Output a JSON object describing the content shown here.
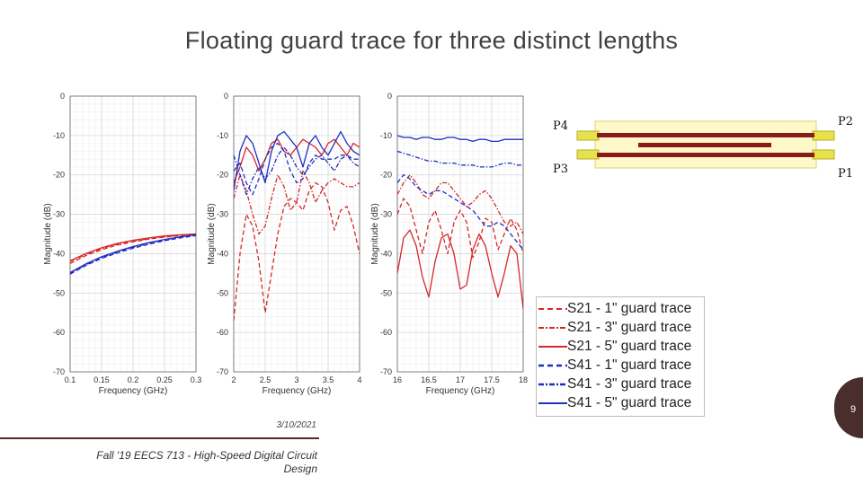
{
  "slide": {
    "title": "Floating guard trace for three distinct lengths",
    "date": "3/10/2021",
    "footer": "Fall '19 EECS 713 - High-Speed Digital Circuit Design",
    "page_number": "9"
  },
  "diagram": {
    "ports": {
      "top_left": "P4",
      "top_right": "P2",
      "bottom_left": "P3",
      "bottom_right": "P1"
    },
    "colors": {
      "trace": "#8b1a1a",
      "substrate": "#fff8c8",
      "connector": "#e8e24a"
    }
  },
  "legend": {
    "items": [
      {
        "label": "S21 - 1\" guard trace",
        "color": "#d62828",
        "style": "dashed"
      },
      {
        "label": "S21 - 3\" guard trace",
        "color": "#d62828",
        "style": "dashdot"
      },
      {
        "label": "S21 - 5\" guard trace",
        "color": "#d62828",
        "style": "solid"
      },
      {
        "label": "S41 - 1\" guard trace",
        "color": "#1f2fbf",
        "style": "dashed"
      },
      {
        "label": "S41 - 3\" guard trace",
        "color": "#1f2fbf",
        "style": "dashdot"
      },
      {
        "label": "S41 - 5\" guard trace",
        "color": "#1f2fbf",
        "style": "solid"
      }
    ]
  },
  "chart_data": [
    {
      "type": "line",
      "xlabel": "Frequency (GHz)",
      "ylabel": "Magnitude (dB)",
      "xlim": [
        0.1,
        0.3
      ],
      "ylim": [
        -70,
        0
      ],
      "xticks": [
        "0.1",
        "0.15",
        "0.2",
        "0.25",
        "0.3"
      ],
      "yticks": [
        "0",
        "-10",
        "-20",
        "-30",
        "-40",
        "-50",
        "-60",
        "-70"
      ],
      "grid": true,
      "series": [
        {
          "name": "S21 - 1\" guard trace",
          "x": [
            0.1,
            0.125,
            0.15,
            0.175,
            0.2,
            0.225,
            0.25,
            0.275,
            0.3
          ],
          "y": [
            -42.5,
            -40.5,
            -39,
            -37.8,
            -37,
            -36.3,
            -35.8,
            -35.4,
            -35
          ]
        },
        {
          "name": "S21 - 3\" guard trace",
          "x": [
            0.1,
            0.125,
            0.15,
            0.175,
            0.2,
            0.225,
            0.25,
            0.275,
            0.3
          ],
          "y": [
            -42,
            -40.2,
            -38.7,
            -37.6,
            -36.8,
            -36.2,
            -35.7,
            -35.3,
            -35
          ]
        },
        {
          "name": "S21 - 5\" guard trace",
          "x": [
            0.1,
            0.125,
            0.15,
            0.175,
            0.2,
            0.225,
            0.25,
            0.275,
            0.3
          ],
          "y": [
            -41.8,
            -40,
            -38.5,
            -37.4,
            -36.6,
            -36,
            -35.5,
            -35.2,
            -35
          ]
        },
        {
          "name": "S41 - 1\" guard trace",
          "x": [
            0.1,
            0.125,
            0.15,
            0.175,
            0.2,
            0.225,
            0.25,
            0.275,
            0.3
          ],
          "y": [
            -45.2,
            -43,
            -41.2,
            -39.8,
            -38.6,
            -37.6,
            -36.7,
            -36,
            -35.4
          ]
        },
        {
          "name": "S41 - 3\" guard trace",
          "x": [
            0.1,
            0.125,
            0.15,
            0.175,
            0.2,
            0.225,
            0.25,
            0.275,
            0.3
          ],
          "y": [
            -45,
            -42.8,
            -41,
            -39.6,
            -38.4,
            -37.4,
            -36.5,
            -35.8,
            -35.3
          ]
        },
        {
          "name": "S41 - 5\" guard trace",
          "x": [
            0.1,
            0.125,
            0.15,
            0.175,
            0.2,
            0.225,
            0.25,
            0.275,
            0.3
          ],
          "y": [
            -44.8,
            -42.6,
            -40.8,
            -39.4,
            -38.2,
            -37.2,
            -36.4,
            -35.7,
            -35.2
          ]
        }
      ]
    },
    {
      "type": "line",
      "xlabel": "Frequency (GHz)",
      "ylabel": "Magnitude (dB)",
      "xlim": [
        2,
        4
      ],
      "ylim": [
        -70,
        0
      ],
      "xticks": [
        "2",
        "2.5",
        "3",
        "3.5",
        "4"
      ],
      "yticks": [
        "0",
        "-10",
        "-20",
        "-30",
        "-40",
        "-50",
        "-60",
        "-70"
      ],
      "grid": true,
      "series": [
        {
          "name": "S21 - 1\" guard trace",
          "x": [
            2,
            2.1,
            2.2,
            2.3,
            2.4,
            2.5,
            2.6,
            2.7,
            2.8,
            2.9,
            3,
            3.1,
            3.2,
            3.3,
            3.4,
            3.5,
            3.6,
            3.7,
            3.8,
            3.9,
            4
          ],
          "y": [
            -57,
            -40,
            -30,
            -33,
            -42,
            -55,
            -45,
            -35,
            -28,
            -26,
            -27,
            -29,
            -24,
            -22,
            -23,
            -27,
            -34,
            -29,
            -28,
            -33,
            -40
          ]
        },
        {
          "name": "S21 - 3\" guard trace",
          "x": [
            2,
            2.1,
            2.2,
            2.3,
            2.4,
            2.5,
            2.6,
            2.7,
            2.8,
            2.9,
            3,
            3.1,
            3.2,
            3.3,
            3.4,
            3.5,
            3.6,
            3.7,
            3.8,
            3.9,
            4
          ],
          "y": [
            -26,
            -20,
            -24,
            -30,
            -35,
            -33,
            -26,
            -20,
            -23,
            -29,
            -27,
            -19,
            -22,
            -27,
            -24,
            -22,
            -21,
            -22,
            -23,
            -23,
            -22
          ]
        },
        {
          "name": "S21 - 5\" guard trace",
          "x": [
            2,
            2.1,
            2.2,
            2.3,
            2.4,
            2.5,
            2.6,
            2.7,
            2.8,
            2.9,
            3,
            3.1,
            3.2,
            3.3,
            3.4,
            3.5,
            3.6,
            3.7,
            3.8,
            3.9,
            4
          ],
          "y": [
            -22,
            -18,
            -13,
            -15,
            -19,
            -16,
            -12,
            -11,
            -14,
            -15,
            -13,
            -11,
            -12,
            -13,
            -15,
            -12,
            -11,
            -13,
            -15,
            -12,
            -13
          ]
        },
        {
          "name": "S41 - 1\" guard trace",
          "x": [
            2,
            2.1,
            2.2,
            2.3,
            2.4,
            2.5,
            2.6,
            2.7,
            2.8,
            2.9,
            3,
            3.1,
            3.2,
            3.3,
            3.4,
            3.5,
            3.6,
            3.7,
            3.8,
            3.9,
            4
          ],
          "y": [
            -19,
            -17,
            -22,
            -25,
            -21,
            -16,
            -13,
            -12,
            -14,
            -19,
            -22,
            -21,
            -17,
            -15,
            -16,
            -16,
            -16,
            -15,
            -15,
            -16,
            -16
          ]
        },
        {
          "name": "S41 - 3\" guard trace",
          "x": [
            2,
            2.1,
            2.2,
            2.3,
            2.4,
            2.5,
            2.6,
            2.7,
            2.8,
            2.9,
            3,
            3.1,
            3.2,
            3.3,
            3.4,
            3.5,
            3.6,
            3.7,
            3.8,
            3.9,
            4
          ],
          "y": [
            -15,
            -20,
            -25,
            -21,
            -18,
            -21,
            -19,
            -15,
            -13,
            -15,
            -18,
            -20,
            -18,
            -16,
            -15,
            -17,
            -19,
            -16,
            -15,
            -17,
            -18
          ]
        },
        {
          "name": "S41 - 5\" guard trace",
          "x": [
            2,
            2.1,
            2.2,
            2.3,
            2.4,
            2.5,
            2.6,
            2.7,
            2.8,
            2.9,
            3,
            3.1,
            3.2,
            3.3,
            3.4,
            3.5,
            3.6,
            3.7,
            3.8,
            3.9,
            4
          ],
          "y": [
            -24,
            -14,
            -10,
            -12,
            -17,
            -22,
            -14,
            -10,
            -9,
            -11,
            -13,
            -18,
            -12,
            -10,
            -13,
            -15,
            -12,
            -9,
            -12,
            -14,
            -15
          ]
        }
      ]
    },
    {
      "type": "line",
      "xlabel": "Frequency (GHz)",
      "ylabel": "Magnitude (dB)",
      "xlim": [
        16,
        18
      ],
      "ylim": [
        -70,
        0
      ],
      "xticks": [
        "16",
        "16.5",
        "17",
        "17.5",
        "18"
      ],
      "yticks": [
        "0",
        "-10",
        "-20",
        "-30",
        "-40",
        "-50",
        "-60",
        "-70"
      ],
      "grid": true,
      "series": [
        {
          "name": "S21 - 1\" guard trace",
          "x": [
            16,
            16.1,
            16.2,
            16.3,
            16.4,
            16.5,
            16.6,
            16.7,
            16.8,
            16.9,
            17,
            17.1,
            17.2,
            17.3,
            17.4,
            17.5,
            17.6,
            17.7,
            17.8,
            17.9,
            18
          ],
          "y": [
            -30,
            -26,
            -28,
            -34,
            -40,
            -32,
            -29,
            -34,
            -40,
            -32,
            -29,
            -32,
            -41,
            -37,
            -31,
            -32,
            -39,
            -35,
            -31,
            -34,
            -40
          ]
        },
        {
          "name": "S21 - 3\" guard trace",
          "x": [
            16,
            16.1,
            16.2,
            16.3,
            16.4,
            16.5,
            16.6,
            16.7,
            16.8,
            16.9,
            17,
            17.1,
            17.2,
            17.3,
            17.4,
            17.5,
            17.6,
            17.7,
            17.8,
            17.9,
            18
          ],
          "y": [
            -25,
            -22,
            -20,
            -22,
            -25,
            -26,
            -24,
            -22,
            -22,
            -24,
            -26,
            -28,
            -27,
            -25,
            -24,
            -26,
            -29,
            -32,
            -33,
            -32,
            -35
          ]
        },
        {
          "name": "S21 - 5\" guard trace",
          "x": [
            16,
            16.1,
            16.2,
            16.3,
            16.4,
            16.5,
            16.6,
            16.7,
            16.8,
            16.9,
            17,
            17.1,
            17.2,
            17.3,
            17.4,
            17.5,
            17.6,
            17.7,
            17.8,
            17.9,
            18
          ],
          "y": [
            -45,
            -36,
            -34,
            -38,
            -46,
            -51,
            -42,
            -36,
            -35,
            -40,
            -49,
            -48,
            -39,
            -35,
            -38,
            -45,
            -51,
            -45,
            -38,
            -40,
            -54
          ]
        },
        {
          "name": "S41 - 1\" guard trace",
          "x": [
            16,
            16.1,
            16.2,
            16.3,
            16.4,
            16.5,
            16.6,
            16.7,
            16.8,
            16.9,
            17,
            17.1,
            17.2,
            17.3,
            17.4,
            17.5,
            17.6,
            17.7,
            17.8,
            17.9,
            18
          ],
          "y": [
            -22,
            -20,
            -21,
            -23,
            -24,
            -25,
            -24,
            -24,
            -25,
            -26,
            -27,
            -28,
            -29,
            -31,
            -33,
            -33,
            -32,
            -33,
            -35,
            -37,
            -39
          ]
        },
        {
          "name": "S41 - 3\" guard trace",
          "x": [
            16,
            16.1,
            16.2,
            16.3,
            16.4,
            16.5,
            16.6,
            16.7,
            16.8,
            16.9,
            17,
            17.1,
            17.2,
            17.3,
            17.4,
            17.5,
            17.6,
            17.7,
            17.8,
            17.9,
            18
          ],
          "y": [
            -14,
            -14.5,
            -15,
            -15.5,
            -16,
            -16.5,
            -16.5,
            -17,
            -17,
            -17,
            -17.5,
            -17.5,
            -17.5,
            -18,
            -18,
            -18,
            -17.5,
            -17,
            -17,
            -17.5,
            -17.5
          ]
        },
        {
          "name": "S41 - 5\" guard trace",
          "x": [
            16,
            16.1,
            16.2,
            16.3,
            16.4,
            16.5,
            16.6,
            16.7,
            16.8,
            16.9,
            17,
            17.1,
            17.2,
            17.3,
            17.4,
            17.5,
            17.6,
            17.7,
            17.8,
            17.9,
            18
          ],
          "y": [
            -10,
            -10.5,
            -10.5,
            -11,
            -10.5,
            -10.5,
            -11,
            -11,
            -10.5,
            -10.5,
            -11,
            -11,
            -11.5,
            -11,
            -11,
            -11.5,
            -11.5,
            -11,
            -11,
            -11,
            -11
          ]
        }
      ]
    }
  ]
}
